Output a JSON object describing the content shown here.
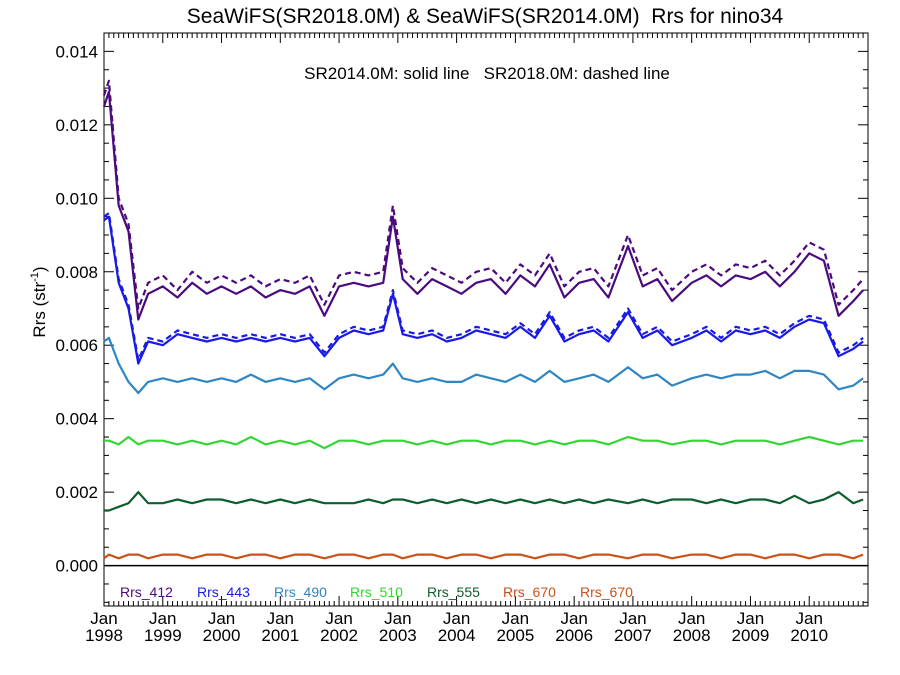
{
  "chart_data": {
    "type": "line",
    "title": "SeaWiFS(SR2018.0M) & SeaWiFS(SR2014.0M)  Rrs for nino34",
    "annotation": "SR2014.0M: solid line   SR2018.0M: dashed line",
    "ylabel": "Rrs (str",
    "ylabel_sup": "-1",
    "ylabel_close": ")",
    "xlim": [
      "1998-01",
      "2010-12"
    ],
    "ylim": [
      -0.0011,
      0.0145
    ],
    "yticks": [
      "0.000",
      "0.002",
      "0.004",
      "0.006",
      "0.008",
      "0.010",
      "0.012",
      "0.014"
    ],
    "ytick_values": [
      0.0,
      0.002,
      0.004,
      0.006,
      0.008,
      0.01,
      0.012,
      0.014
    ],
    "xtick_month": "Jan",
    "xtick_years": [
      "1998",
      "1999",
      "2000",
      "2001",
      "2002",
      "2003",
      "2004",
      "2005",
      "2006",
      "2007",
      "2008",
      "2009",
      "2010"
    ],
    "grid": false,
    "zero_line": true,
    "legend_position": "bottom-left inside",
    "series_styles": {
      "SR2014.0M": "solid",
      "SR2018.0M": "dashed"
    },
    "x": [
      "1998-01",
      "1998-02",
      "1998-04",
      "1998-06",
      "1998-08",
      "1998-10",
      "1999-01",
      "1999-04",
      "1999-07",
      "1999-10",
      "2000-01",
      "2000-04",
      "2000-07",
      "2000-10",
      "2001-01",
      "2001-04",
      "2001-07",
      "2001-10",
      "2002-01",
      "2002-04",
      "2002-07",
      "2002-10",
      "2002-12",
      "2003-02",
      "2003-05",
      "2003-08",
      "2003-11",
      "2004-02",
      "2004-05",
      "2004-08",
      "2004-11",
      "2005-02",
      "2005-05",
      "2005-08",
      "2005-11",
      "2006-02",
      "2006-05",
      "2006-08",
      "2006-12",
      "2007-03",
      "2007-06",
      "2007-09",
      "2008-01",
      "2008-04",
      "2008-07",
      "2008-10",
      "2009-01",
      "2009-04",
      "2009-07",
      "2009-10",
      "2010-01",
      "2010-04",
      "2010-07",
      "2010-10",
      "2010-12"
    ],
    "series": [
      {
        "name": "Rrs_412",
        "color": "#4b0a7d",
        "sr2014": [
          0.0125,
          0.0129,
          0.0098,
          0.0091,
          0.0067,
          0.0074,
          0.0076,
          0.0073,
          0.0077,
          0.0074,
          0.0076,
          0.0074,
          0.0076,
          0.0073,
          0.0075,
          0.0074,
          0.0076,
          0.0068,
          0.0076,
          0.0077,
          0.0076,
          0.0077,
          0.0095,
          0.0078,
          0.0074,
          0.0078,
          0.0076,
          0.0074,
          0.0077,
          0.0078,
          0.0074,
          0.0079,
          0.0076,
          0.0082,
          0.0073,
          0.0077,
          0.0078,
          0.0073,
          0.0087,
          0.0076,
          0.0078,
          0.0072,
          0.0077,
          0.0079,
          0.0076,
          0.0079,
          0.0078,
          0.008,
          0.0076,
          0.008,
          0.0085,
          0.0083,
          0.0068,
          0.0072,
          0.0075
        ],
        "sr2018": [
          0.0128,
          0.0132,
          0.01,
          0.0093,
          0.007,
          0.0077,
          0.0079,
          0.0075,
          0.008,
          0.0077,
          0.0079,
          0.0077,
          0.0079,
          0.0076,
          0.0078,
          0.0077,
          0.0079,
          0.0071,
          0.0079,
          0.008,
          0.0079,
          0.008,
          0.0098,
          0.0081,
          0.0077,
          0.0081,
          0.0079,
          0.0077,
          0.008,
          0.0081,
          0.0077,
          0.0082,
          0.0079,
          0.0085,
          0.0076,
          0.008,
          0.0081,
          0.0076,
          0.009,
          0.0079,
          0.0081,
          0.0075,
          0.008,
          0.0082,
          0.0079,
          0.0082,
          0.0081,
          0.0083,
          0.0079,
          0.0083,
          0.0088,
          0.0086,
          0.0071,
          0.0075,
          0.0078
        ]
      },
      {
        "name": "Rrs_443",
        "color": "#1a1ae6",
        "sr2014": [
          0.0094,
          0.0095,
          0.0077,
          0.007,
          0.0055,
          0.0061,
          0.006,
          0.0063,
          0.0062,
          0.0061,
          0.0062,
          0.0061,
          0.0062,
          0.0061,
          0.0062,
          0.0061,
          0.0062,
          0.0057,
          0.0062,
          0.0064,
          0.0063,
          0.0064,
          0.0074,
          0.0063,
          0.0062,
          0.0063,
          0.0061,
          0.0062,
          0.0064,
          0.0063,
          0.0062,
          0.0065,
          0.0062,
          0.0068,
          0.0061,
          0.0063,
          0.0064,
          0.0061,
          0.0069,
          0.0062,
          0.0064,
          0.006,
          0.0062,
          0.0064,
          0.0061,
          0.0064,
          0.0063,
          0.0064,
          0.0062,
          0.0065,
          0.0067,
          0.0066,
          0.0057,
          0.0059,
          0.0061
        ],
        "sr2018": [
          0.0095,
          0.0096,
          0.0078,
          0.0071,
          0.0056,
          0.0062,
          0.0061,
          0.0064,
          0.0063,
          0.0062,
          0.0063,
          0.0062,
          0.0063,
          0.0062,
          0.0063,
          0.0062,
          0.0063,
          0.0058,
          0.0063,
          0.0065,
          0.0064,
          0.0065,
          0.0075,
          0.0064,
          0.0063,
          0.0064,
          0.0062,
          0.0063,
          0.0065,
          0.0064,
          0.0063,
          0.0066,
          0.0063,
          0.0069,
          0.0062,
          0.0064,
          0.0065,
          0.0062,
          0.007,
          0.0063,
          0.0065,
          0.0061,
          0.0063,
          0.0065,
          0.0062,
          0.0065,
          0.0064,
          0.0065,
          0.0063,
          0.0066,
          0.0068,
          0.0067,
          0.0058,
          0.006,
          0.0062
        ]
      },
      {
        "name": "Rrs_490",
        "color": "#2e86c4",
        "sr2014": [
          0.0061,
          0.0062,
          0.0055,
          0.005,
          0.0047,
          0.005,
          0.0051,
          0.005,
          0.0051,
          0.005,
          0.0051,
          0.005,
          0.0052,
          0.005,
          0.0051,
          0.005,
          0.0051,
          0.0048,
          0.0051,
          0.0052,
          0.0051,
          0.0052,
          0.0055,
          0.0051,
          0.005,
          0.0051,
          0.005,
          0.005,
          0.0052,
          0.0051,
          0.005,
          0.0052,
          0.005,
          0.0053,
          0.005,
          0.0051,
          0.0052,
          0.005,
          0.0054,
          0.0051,
          0.0052,
          0.0049,
          0.0051,
          0.0052,
          0.0051,
          0.0052,
          0.0052,
          0.0053,
          0.0051,
          0.0053,
          0.0053,
          0.0052,
          0.0048,
          0.0049,
          0.0051
        ],
        "sr2018": []
      },
      {
        "name": "Rrs_510",
        "color": "#33d633",
        "sr2014": [
          0.0034,
          0.0034,
          0.0033,
          0.0035,
          0.0033,
          0.0034,
          0.0034,
          0.0033,
          0.0034,
          0.0033,
          0.0034,
          0.0033,
          0.0035,
          0.0033,
          0.0034,
          0.0033,
          0.0034,
          0.0032,
          0.0034,
          0.0034,
          0.0033,
          0.0034,
          0.0034,
          0.0034,
          0.0033,
          0.0034,
          0.0033,
          0.0034,
          0.0034,
          0.0033,
          0.0034,
          0.0034,
          0.0033,
          0.0034,
          0.0033,
          0.0034,
          0.0034,
          0.0033,
          0.0035,
          0.0034,
          0.0034,
          0.0033,
          0.0034,
          0.0034,
          0.0033,
          0.0034,
          0.0034,
          0.0034,
          0.0033,
          0.0034,
          0.0035,
          0.0034,
          0.0033,
          0.0034,
          0.0034
        ],
        "sr2018": []
      },
      {
        "name": "Rrs_555",
        "color": "#0d5e2e",
        "sr2014": [
          0.0015,
          0.0015,
          0.0016,
          0.0017,
          0.002,
          0.0017,
          0.0017,
          0.0018,
          0.0017,
          0.0018,
          0.0018,
          0.0017,
          0.0018,
          0.0017,
          0.0018,
          0.0017,
          0.0018,
          0.0017,
          0.0017,
          0.0017,
          0.0018,
          0.0017,
          0.0018,
          0.0018,
          0.0017,
          0.0018,
          0.0017,
          0.0018,
          0.0017,
          0.0018,
          0.0017,
          0.0018,
          0.0017,
          0.0018,
          0.0017,
          0.0018,
          0.0017,
          0.0018,
          0.0017,
          0.0018,
          0.0017,
          0.0018,
          0.0018,
          0.0017,
          0.0018,
          0.0017,
          0.0018,
          0.0018,
          0.0017,
          0.0019,
          0.0017,
          0.0018,
          0.002,
          0.0017,
          0.0018
        ],
        "sr2018": []
      },
      {
        "name": "Rrs_670",
        "color": "#c9521a",
        "sr2014": [
          0.0002,
          0.0003,
          0.0002,
          0.0003,
          0.0003,
          0.0002,
          0.0003,
          0.0003,
          0.0002,
          0.0003,
          0.0003,
          0.0002,
          0.0003,
          0.0003,
          0.0002,
          0.0003,
          0.0003,
          0.0002,
          0.0003,
          0.0003,
          0.0002,
          0.0003,
          0.0003,
          0.0002,
          0.0003,
          0.0003,
          0.0002,
          0.0003,
          0.0003,
          0.0002,
          0.0003,
          0.0003,
          0.0002,
          0.0003,
          0.0003,
          0.0002,
          0.0003,
          0.0003,
          0.0002,
          0.0003,
          0.0003,
          0.0002,
          0.0003,
          0.0003,
          0.0002,
          0.0003,
          0.0003,
          0.0002,
          0.0003,
          0.0003,
          0.0002,
          0.0003,
          0.0003,
          0.0002,
          0.0003
        ],
        "sr2018": []
      },
      {
        "name": "Rrs_670",
        "color": "#c9521a",
        "sr2014": [],
        "sr2018": []
      }
    ]
  }
}
